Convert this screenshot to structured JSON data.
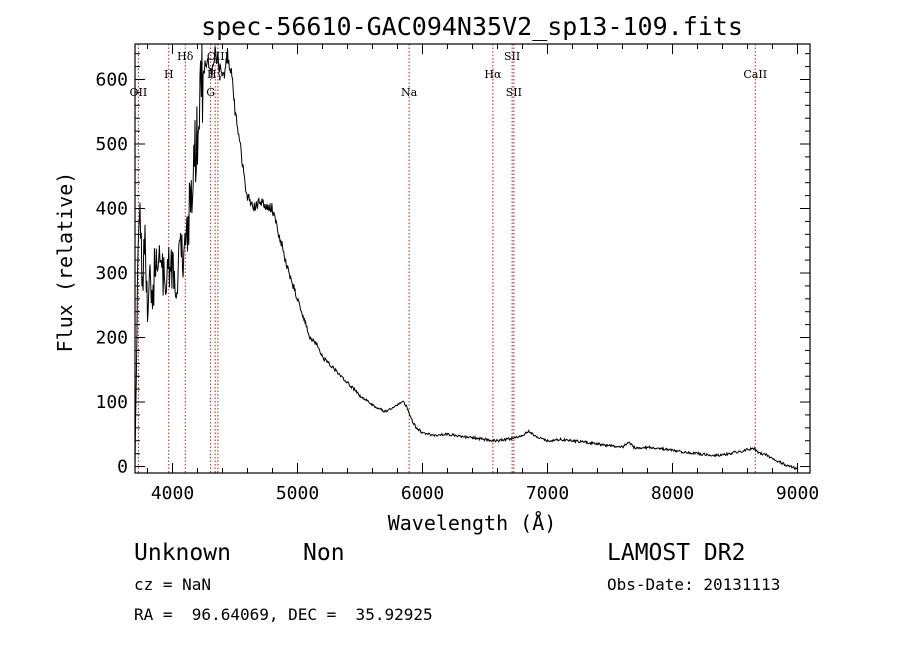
{
  "chart_data": {
    "type": "line",
    "title": "spec-56610-GAC094N35V2_sp13-109.fits",
    "xlabel": "Wavelength (Å)",
    "ylabel": "Flux (relative)",
    "xlim": [
      3700,
      9100
    ],
    "ylim": [
      -10,
      655
    ],
    "xticks": [
      4000,
      5000,
      6000,
      7000,
      8000,
      9000
    ],
    "yticks": [
      0,
      100,
      200,
      300,
      400,
      500,
      600
    ],
    "grid": false,
    "series": [
      {
        "x": [
          3700,
          3720,
          3740,
          3760,
          3780,
          3800,
          3820,
          3840,
          3860,
          3880,
          3900,
          3920,
          3940,
          3960,
          3980,
          4000,
          4020,
          4040,
          4060,
          4080,
          4100,
          4120,
          4140,
          4160,
          4180,
          4200,
          4220,
          4240,
          4260,
          4280,
          4300,
          4320,
          4340,
          4360,
          4380,
          4400,
          4420,
          4440,
          4460,
          4480,
          4500,
          4520,
          4540,
          4560,
          4580,
          4600,
          4620,
          4650,
          4700,
          4750,
          4800,
          4850,
          4880,
          4900,
          4950,
          5000,
          5050,
          5100,
          5150,
          5200,
          5300,
          5400,
          5500,
          5600,
          5700,
          5800,
          5850,
          5880,
          5900,
          5920,
          5950,
          6000,
          6100,
          6200,
          6300,
          6400,
          6500,
          6600,
          6700,
          6800,
          6850,
          6900,
          7000,
          7100,
          7200,
          7300,
          7400,
          7500,
          7600,
          7650,
          7700,
          7800,
          7900,
          8000,
          8100,
          8200,
          8300,
          8400,
          8500,
          8600,
          8650,
          8700,
          8750,
          8800,
          8850,
          8900,
          8950,
          9000
        ],
        "y": [
          0,
          300,
          370,
          290,
          350,
          250,
          310,
          230,
          330,
          280,
          350,
          300,
          280,
          290,
          320,
          310,
          300,
          290,
          330,
          330,
          340,
          370,
          410,
          440,
          480,
          520,
          560,
          600,
          620,
          630,
          620,
          610,
          640,
          630,
          620,
          600,
          610,
          640,
          620,
          600,
          550,
          520,
          500,
          470,
          440,
          420,
          410,
          400,
          410,
          405,
          400,
          360,
          340,
          320,
          290,
          260,
          230,
          200,
          190,
          170,
          150,
          130,
          110,
          95,
          85,
          95,
          100,
          90,
          80,
          70,
          60,
          52,
          48,
          50,
          47,
          45,
          42,
          40,
          43,
          48,
          55,
          48,
          40,
          42,
          40,
          38,
          35,
          32,
          30,
          38,
          28,
          30,
          28,
          25,
          22,
          20,
          18,
          18,
          22,
          26,
          28,
          20,
          18,
          12,
          8,
          3,
          0,
          -5
        ]
      }
    ],
    "lines": [
      {
        "label": "OII",
        "x": 3727,
        "row": 3
      },
      {
        "label": "H",
        "x": 3970,
        "row": 2
      },
      {
        "label": "Hδ",
        "x": 4102,
        "row": 1
      },
      {
        "label": "Hγ",
        "x": 4341,
        "row": 2
      },
      {
        "label": "G",
        "x": 4305,
        "row": 3
      },
      {
        "label": "OIII",
        "x": 4363,
        "row": 1
      },
      {
        "label": "Na",
        "x": 5893,
        "row": 3
      },
      {
        "label": "Hα",
        "x": 6563,
        "row": 2
      },
      {
        "label": "SII",
        "x": 6717,
        "row": 1
      },
      {
        "label": "SII",
        "x": 6731,
        "row": 3
      },
      {
        "label": "CaII",
        "x": 8662,
        "row": 2
      }
    ]
  },
  "info": {
    "class": "Unknown",
    "subclass": "Non",
    "survey": "LAMOST DR2",
    "cz": "cz = NaN",
    "obs_date": "Obs-Date: 20131113",
    "coords": "RA =  96.64069, DEC =  35.92925"
  }
}
